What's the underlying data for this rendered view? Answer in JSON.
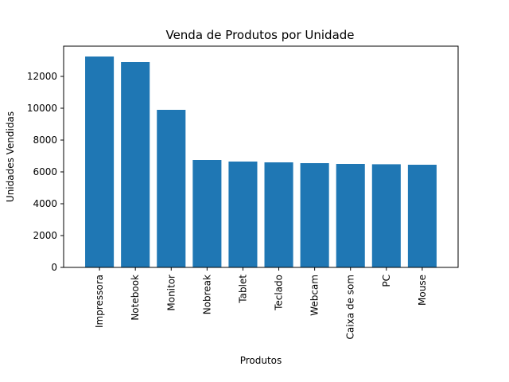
{
  "chart_data": {
    "type": "bar",
    "title": "Venda de Produtos por Unidade",
    "xlabel": "Produtos",
    "ylabel": "Unidades Vendidas",
    "categories": [
      "Impressora",
      "Notebook",
      "Monitor",
      "Nobreak",
      "Tablet",
      "Teclado",
      "Webcam",
      "Caixa de som",
      "PC",
      "Mouse"
    ],
    "values": [
      13250,
      12900,
      9900,
      6750,
      6650,
      6600,
      6550,
      6500,
      6480,
      6450
    ],
    "ylim": [
      0,
      13900
    ],
    "yticks": [
      0,
      2000,
      4000,
      6000,
      8000,
      10000,
      12000
    ],
    "ytick_labels": [
      "0",
      "2000",
      "4000",
      "6000",
      "8000",
      "10000",
      "12000"
    ],
    "grid": false,
    "bar_color": "#1f77b4"
  }
}
